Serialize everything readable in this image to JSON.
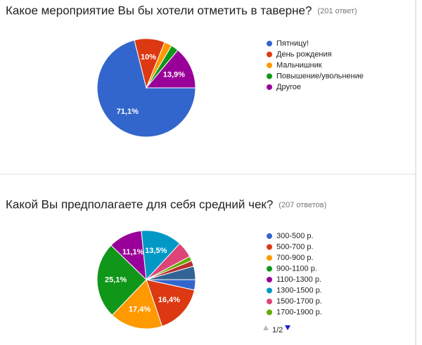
{
  "chart_data": [
    {
      "type": "pie",
      "title": "Какое мероприятие Вы бы хотели отметить в таверне?",
      "subtitle": "(201 ответ)",
      "categories": [
        "Пятницу!",
        "День рождения",
        "Мальчишник",
        "Повышение/увольнение",
        "Другое"
      ],
      "values": [
        71.1,
        10,
        2.5,
        2.5,
        13.9
      ],
      "value_labels": [
        "71,1%",
        "10%",
        null,
        null,
        "13,9%"
      ],
      "colors": [
        "#3366cc",
        "#dc3912",
        "#ff9900",
        "#109618",
        "#990099"
      ]
    },
    {
      "type": "pie",
      "title": "Какой Вы предполагаете для себя средний чек?",
      "subtitle": "(207 ответов)",
      "categories": [
        "300-500 р.",
        "500-700 р.",
        "700-900 р.",
        "900-1100 р.",
        "1100-1300 р.",
        "1300-1500 р.",
        "1500-1700 р.",
        "1700-1900 р.",
        null,
        null
      ],
      "values": [
        3.4,
        16.4,
        17.4,
        25.1,
        11.1,
        13.5,
        5.3,
        1.5,
        1.9,
        4.4
      ],
      "value_labels": [
        null,
        "16,4%",
        "17,4%",
        "25,1%",
        "11,1%",
        "13,5%",
        null,
        null,
        null,
        null
      ],
      "colors": [
        "#3366cc",
        "#dc3912",
        "#ff9900",
        "#109618",
        "#990099",
        "#0099c6",
        "#dd4477",
        "#66aa00",
        "#b82e2e",
        "#316395"
      ],
      "legend_page": "1/2"
    }
  ]
}
